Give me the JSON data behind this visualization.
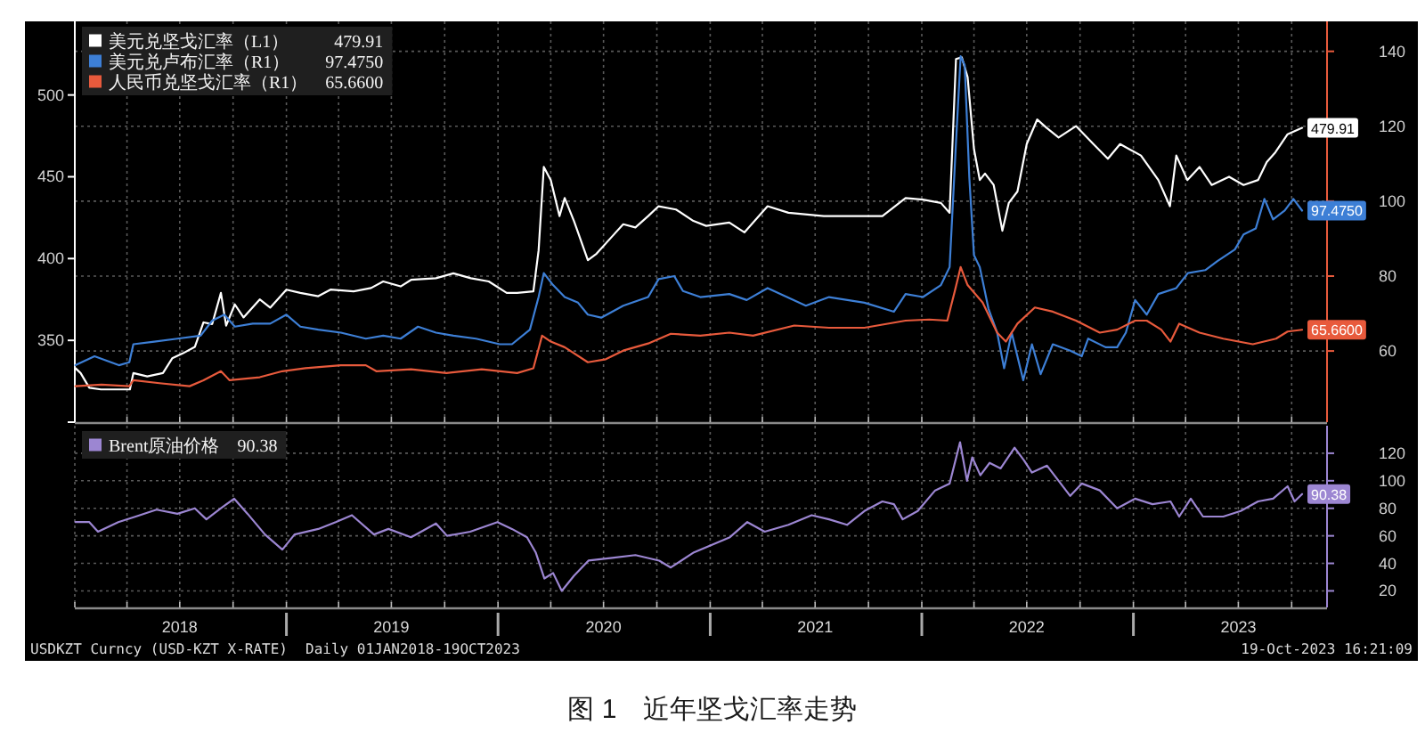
{
  "chart_data": [
    {
      "type": "line",
      "xlim": [
        "2018-01-01",
        "2023-12-01"
      ],
      "xticks": [
        {
          "value": "2018-01-01",
          "label": null
        },
        {
          "value": "2018-04-01",
          "label": null
        },
        {
          "value": "2018-07-01",
          "label": null
        },
        {
          "value": "2018-10-01",
          "label": null
        },
        {
          "value": "2019-01-01",
          "label": null
        },
        {
          "value": "2019-04-01",
          "label": null
        },
        {
          "value": "2019-07-01",
          "label": null
        },
        {
          "value": "2019-10-01",
          "label": null
        },
        {
          "value": "2020-01-01",
          "label": null
        },
        {
          "value": "2020-04-01",
          "label": null
        },
        {
          "value": "2020-07-01",
          "label": null
        },
        {
          "value": "2020-10-01",
          "label": null
        },
        {
          "value": "2021-01-01",
          "label": null
        },
        {
          "value": "2021-04-01",
          "label": null
        },
        {
          "value": "2021-07-01",
          "label": null
        },
        {
          "value": "2021-10-01",
          "label": null
        },
        {
          "value": "2022-01-01",
          "label": null
        },
        {
          "value": "2022-04-01",
          "label": null
        },
        {
          "value": "2022-07-01",
          "label": null
        },
        {
          "value": "2022-10-01",
          "label": null
        },
        {
          "value": "2023-01-01",
          "label": null
        },
        {
          "value": "2023-04-01",
          "label": null
        },
        {
          "value": "2023-07-01",
          "label": null
        },
        {
          "value": "2023-10-01",
          "label": null
        }
      ],
      "ylim": [
        300,
        545
      ],
      "yticks": [
        {
          "value": 300,
          "label": null
        },
        350,
        400,
        450,
        500
      ],
      "y2lim": [
        41,
        148
      ],
      "y2ticks": [
        60,
        80,
        100,
        120,
        140
      ],
      "grid": true,
      "legend": "top left",
      "tick_labels": "y",
      "series": [
        {
          "name": "美元兑坚戈汇率（L1）",
          "color": "#ffffff",
          "x": [
            "2018-01-02",
            "2018-01-11",
            "2018-01-26",
            "2018-02-15",
            "2018-04-06",
            "2018-04-12",
            "2018-05-06",
            "2018-06-02",
            "2018-06-18",
            "2018-07-06",
            "2018-07-27",
            "2018-08-11",
            "2018-08-26",
            "2018-09-10",
            "2018-09-19",
            "2018-10-04",
            "2018-10-19",
            "2018-11-16",
            "2018-12-04",
            "2019-01-01",
            "2019-01-25",
            "2019-02-25",
            "2019-03-18",
            "2019-04-27",
            "2019-05-27",
            "2019-06-17",
            "2019-07-17",
            "2019-08-04",
            "2019-09-16",
            "2019-10-16",
            "2019-11-15",
            "2019-12-16",
            "2020-01-16",
            "2020-02-03",
            "2020-03-02",
            "2020-03-11",
            "2020-03-20",
            "2020-04-01",
            "2020-04-16",
            "2020-04-25",
            "2020-05-11",
            "2020-06-04",
            "2020-06-19",
            "2020-07-17",
            "2020-08-04",
            "2020-08-25",
            "2020-09-16",
            "2020-10-04",
            "2020-11-03",
            "2020-12-03",
            "2020-12-25",
            "2021-02-03",
            "2021-03-01",
            "2021-04-10",
            "2021-05-16",
            "2021-07-16",
            "2021-08-25",
            "2021-10-25",
            "2021-12-04",
            "2022-01-03",
            "2022-02-03",
            "2022-02-18",
            "2022-03-01",
            "2022-03-11",
            "2022-03-21",
            "2022-04-01",
            "2022-04-11",
            "2022-04-20",
            "2022-05-05",
            "2022-05-20",
            "2022-05-31",
            "2022-06-15",
            "2022-07-01",
            "2022-07-19",
            "2022-08-04",
            "2022-08-25",
            "2022-09-24",
            "2022-10-24",
            "2022-11-18",
            "2022-12-09",
            "2023-01-14",
            "2023-02-13",
            "2023-03-05",
            "2023-03-16",
            "2023-04-04",
            "2023-04-25",
            "2023-05-16",
            "2023-06-15",
            "2023-07-10",
            "2023-08-04",
            "2023-08-19",
            "2023-09-03",
            "2023-09-24",
            "2023-10-19"
          ],
          "values": [
            333,
            330,
            321,
            320,
            320,
            330,
            328,
            330,
            339,
            342,
            346,
            361,
            360,
            379,
            359,
            372,
            364,
            375,
            370,
            381,
            379,
            377,
            381,
            380,
            382,
            386,
            383,
            387,
            388,
            391,
            388,
            386,
            379,
            379,
            380,
            405,
            456,
            448,
            426,
            437,
            423,
            399,
            403,
            414,
            421,
            419,
            426,
            432,
            430,
            423,
            420,
            422,
            416,
            432,
            428,
            426,
            426,
            426,
            437,
            436,
            434,
            428,
            522,
            523,
            511,
            467,
            448,
            452,
            445,
            417,
            434,
            441,
            470,
            485,
            480,
            474,
            481,
            470,
            461,
            470,
            463,
            448,
            432,
            463,
            448,
            456,
            445,
            450,
            445,
            448,
            459,
            465,
            476,
            479.91
          ],
          "value_labels": [
            null,
            null,
            null,
            null,
            null,
            null,
            null,
            null,
            null,
            null,
            null,
            null,
            null,
            null,
            null,
            null,
            null,
            null,
            null,
            null,
            null,
            null,
            null,
            null,
            null,
            null,
            null,
            null,
            null,
            null,
            null,
            null,
            null,
            null,
            null,
            null,
            null,
            null,
            null,
            null,
            null,
            null,
            null,
            null,
            null,
            null,
            null,
            null,
            null,
            null,
            null,
            null,
            null,
            null,
            null,
            null,
            null,
            null,
            null,
            null,
            null,
            null,
            null,
            null,
            null,
            null,
            null,
            null,
            null,
            null,
            null,
            null,
            null,
            null,
            null,
            null,
            null,
            null,
            null,
            null,
            null,
            null,
            null,
            null,
            null,
            null,
            null,
            null,
            null,
            null,
            null,
            null,
            null,
            "479.91"
          ]
        },
        {
          "name": "美元兑卢布汇率（R1）",
          "color": "#3d7fd6",
          "axis": "y2",
          "x": [
            "2018-01-02",
            "2018-02-04",
            "2018-03-18",
            "2018-04-05",
            "2018-04-12",
            "2018-05-18",
            "2018-06-27",
            "2018-08-06",
            "2018-08-26",
            "2018-09-16",
            "2018-10-04",
            "2018-11-04",
            "2018-12-04",
            "2019-01-01",
            "2019-01-25",
            "2019-02-25",
            "2019-04-05",
            "2019-05-18",
            "2019-06-17",
            "2019-07-17",
            "2019-08-16",
            "2019-09-16",
            "2019-10-16",
            "2019-11-24",
            "2020-01-04",
            "2020-01-25",
            "2020-02-25",
            "2020-03-11",
            "2020-03-20",
            "2020-04-05",
            "2020-04-25",
            "2020-05-18",
            "2020-06-04",
            "2020-06-27",
            "2020-08-04",
            "2020-09-16",
            "2020-10-04",
            "2020-10-31",
            "2020-11-15",
            "2020-12-15",
            "2021-02-03",
            "2021-03-05",
            "2021-04-10",
            "2021-06-15",
            "2021-07-25",
            "2021-09-24",
            "2021-11-14",
            "2021-12-04",
            "2022-01-03",
            "2022-02-03",
            "2022-02-18",
            "2022-03-01",
            "2022-03-09",
            "2022-03-16",
            "2022-03-24",
            "2022-04-01",
            "2022-04-11",
            "2022-04-26",
            "2022-05-11",
            "2022-05-23",
            "2022-06-05",
            "2022-06-25",
            "2022-07-10",
            "2022-07-25",
            "2022-08-15",
            "2022-09-14",
            "2022-10-04",
            "2022-10-15",
            "2022-11-14",
            "2022-12-04",
            "2022-12-19",
            "2023-01-04",
            "2023-01-24",
            "2023-02-13",
            "2023-03-16",
            "2023-04-05",
            "2023-05-05",
            "2023-05-26",
            "2023-06-25",
            "2023-07-10",
            "2023-07-31",
            "2023-08-15",
            "2023-08-30",
            "2023-09-19",
            "2023-10-04",
            "2023-10-19"
          ],
          "values": [
            56.2,
            58.6,
            56.2,
            57.0,
            61.8,
            62.5,
            63.3,
            64.1,
            68.1,
            69.7,
            66.5,
            67.3,
            67.3,
            69.7,
            66.5,
            65.7,
            64.9,
            63.3,
            64.1,
            63.3,
            66.5,
            64.9,
            64.1,
            63.3,
            61.8,
            61.8,
            65.7,
            74.4,
            80.8,
            77.6,
            74.4,
            72.9,
            69.7,
            68.9,
            72.1,
            74.4,
            79.2,
            80.0,
            76.0,
            74.4,
            75.2,
            73.6,
            76.8,
            72.1,
            74.4,
            72.9,
            70.5,
            75.2,
            74.4,
            77.6,
            82.4,
            115.7,
            138.7,
            136.3,
            106.2,
            85.6,
            82.4,
            71.3,
            64.9,
            55.4,
            64.9,
            52.2,
            61.8,
            53.8,
            61.8,
            60.1,
            58.6,
            63.3,
            61.0,
            61.0,
            64.9,
            73.6,
            69.7,
            75.2,
            76.8,
            80.8,
            81.6,
            84.0,
            87.1,
            91.1,
            92.7,
            100.6,
            95.1,
            97.5,
            100.6,
            97.475
          ],
          "value_labels": [
            null,
            null,
            null,
            null,
            null,
            null,
            null,
            null,
            null,
            null,
            null,
            null,
            null,
            null,
            null,
            null,
            null,
            null,
            null,
            null,
            null,
            null,
            null,
            null,
            null,
            null,
            null,
            null,
            null,
            null,
            null,
            null,
            null,
            null,
            null,
            null,
            null,
            null,
            null,
            null,
            null,
            null,
            null,
            null,
            null,
            null,
            null,
            null,
            null,
            null,
            null,
            null,
            null,
            null,
            null,
            null,
            null,
            null,
            null,
            null,
            null,
            null,
            null,
            null,
            null,
            null,
            null,
            null,
            null,
            null,
            null,
            null,
            null,
            null,
            null,
            null,
            null,
            null,
            null,
            null,
            null,
            null,
            null,
            null,
            null,
            "97.4750"
          ]
        },
        {
          "name": "人民币兑坚戈汇率（R1）",
          "color": "#e85a3c",
          "axis": "y2",
          "x": [
            "2018-01-02",
            "2018-02-16",
            "2018-04-05",
            "2018-04-12",
            "2018-05-27",
            "2018-07-18",
            "2018-08-11",
            "2018-09-10",
            "2018-09-25",
            "2018-11-16",
            "2018-12-25",
            "2019-02-03",
            "2019-04-05",
            "2019-05-18",
            "2019-06-05",
            "2019-08-04",
            "2019-10-04",
            "2019-12-04",
            "2020-02-03",
            "2020-03-02",
            "2020-03-17",
            "2020-04-01",
            "2020-04-25",
            "2020-06-04",
            "2020-07-05",
            "2020-08-04",
            "2020-09-16",
            "2020-10-25",
            "2020-12-15",
            "2021-02-03",
            "2021-03-16",
            "2021-05-26",
            "2021-07-25",
            "2021-09-24",
            "2021-12-04",
            "2022-01-14",
            "2022-02-14",
            "2022-02-27",
            "2022-03-09",
            "2022-03-21",
            "2022-04-16",
            "2022-05-11",
            "2022-05-26",
            "2022-06-15",
            "2022-07-15",
            "2022-08-15",
            "2022-09-24",
            "2022-11-04",
            "2022-12-04",
            "2023-01-04",
            "2023-01-24",
            "2023-02-18",
            "2023-03-06",
            "2023-03-21",
            "2023-04-25",
            "2023-06-05",
            "2023-07-26",
            "2023-09-04",
            "2023-09-24",
            "2023-10-19"
          ],
          "values": [
            50.6,
            51.0,
            50.6,
            52.2,
            51.4,
            50.6,
            52.2,
            54.6,
            52.2,
            53.0,
            54.6,
            55.4,
            56.2,
            56.2,
            54.6,
            55.1,
            54.1,
            55.1,
            54.1,
            55.4,
            64.1,
            62.5,
            61.0,
            57.0,
            57.8,
            60.1,
            62.0,
            64.6,
            64.1,
            64.9,
            64.1,
            66.8,
            66.2,
            66.2,
            68.1,
            68.4,
            68.1,
            76.0,
            82.4,
            77.6,
            72.9,
            64.9,
            62.5,
            67.3,
            71.6,
            70.5,
            68.1,
            64.9,
            65.7,
            68.1,
            68.1,
            65.7,
            62.5,
            67.3,
            64.9,
            63.3,
            61.8,
            63.3,
            65.2,
            65.66
          ],
          "value_labels": [
            null,
            null,
            null,
            null,
            null,
            null,
            null,
            null,
            null,
            null,
            null,
            null,
            null,
            null,
            null,
            null,
            null,
            null,
            null,
            null,
            null,
            null,
            null,
            null,
            null,
            null,
            null,
            null,
            null,
            null,
            null,
            null,
            null,
            null,
            null,
            null,
            null,
            null,
            null,
            null,
            null,
            null,
            null,
            null,
            null,
            null,
            null,
            null,
            null,
            null,
            null,
            null,
            null,
            null,
            null,
            null,
            null,
            null,
            null,
            "65.6600"
          ]
        }
      ]
    },
    {
      "type": "line",
      "xlim": [
        "2018-01-01",
        "2023-12-01"
      ],
      "xticks": [
        {
          "value": "2018-01-01",
          "label": null
        },
        {
          "value": "2018-04-01",
          "label": null
        },
        {
          "value": "2018-07-01",
          "label": "2018"
        },
        {
          "value": "2018-10-01",
          "label": null
        },
        {
          "value": "2019-01-01",
          "label": null
        },
        {
          "value": "2019-04-01",
          "label": null
        },
        {
          "value": "2019-07-01",
          "label": "2019"
        },
        {
          "value": "2019-10-01",
          "label": null
        },
        {
          "value": "2020-01-01",
          "label": null
        },
        {
          "value": "2020-04-01",
          "label": null
        },
        {
          "value": "2020-07-01",
          "label": "2020"
        },
        {
          "value": "2020-10-01",
          "label": null
        },
        {
          "value": "2021-01-01",
          "label": null
        },
        {
          "value": "2021-04-01",
          "label": null
        },
        {
          "value": "2021-07-01",
          "label": "2021"
        },
        {
          "value": "2021-10-01",
          "label": null
        },
        {
          "value": "2022-01-01",
          "label": null
        },
        {
          "value": "2022-04-01",
          "label": null
        },
        {
          "value": "2022-07-01",
          "label": "2022"
        },
        {
          "value": "2022-10-01",
          "label": null
        },
        {
          "value": "2023-01-01",
          "label": null
        },
        {
          "value": "2023-04-01",
          "label": null
        },
        {
          "value": "2023-07-01",
          "label": "2023"
        },
        {
          "value": "2023-10-01",
          "label": null
        }
      ],
      "y2lim": [
        8,
        140
      ],
      "y2ticks": [
        20,
        40,
        60,
        80,
        100,
        120
      ],
      "grid": true,
      "legend": "top left",
      "series": [
        {
          "name": "Brent原油价格",
          "color": "#9c86d2",
          "axis": "y2",
          "x": [
            "2018-01-02",
            "2018-01-26",
            "2018-02-10",
            "2018-03-17",
            "2018-04-16",
            "2018-05-22",
            "2018-06-27",
            "2018-07-27",
            "2018-08-16",
            "2018-09-10",
            "2018-10-03",
            "2018-10-26",
            "2018-11-25",
            "2018-12-25",
            "2019-01-15",
            "2019-02-25",
            "2019-03-27",
            "2019-04-24",
            "2019-06-01",
            "2019-06-26",
            "2019-08-04",
            "2019-09-16",
            "2019-10-05",
            "2019-11-14",
            "2019-12-31",
            "2020-01-25",
            "2020-02-20",
            "2020-03-06",
            "2020-03-21",
            "2020-04-05",
            "2020-04-20",
            "2020-05-11",
            "2020-06-05",
            "2020-07-16",
            "2020-08-25",
            "2020-10-05",
            "2020-10-25",
            "2020-12-04",
            "2021-02-04",
            "2021-03-06",
            "2021-04-05",
            "2021-05-16",
            "2021-06-25",
            "2021-07-25",
            "2021-08-25",
            "2021-09-24",
            "2021-10-25",
            "2021-11-14",
            "2021-11-29",
            "2021-12-25",
            "2022-01-24",
            "2022-02-18",
            "2022-03-08",
            "2022-03-20",
            "2022-03-29",
            "2022-04-12",
            "2022-04-28",
            "2022-05-17",
            "2022-06-10",
            "2022-06-26",
            "2022-07-10",
            "2022-08-05",
            "2022-08-25",
            "2022-09-14",
            "2022-10-04",
            "2022-11-04",
            "2022-12-04",
            "2023-01-04",
            "2023-02-03",
            "2023-03-06",
            "2023-03-21",
            "2023-04-10",
            "2023-05-01",
            "2023-06-05",
            "2023-07-05",
            "2023-08-04",
            "2023-08-30",
            "2023-09-24",
            "2023-10-06",
            "2023-10-19"
          ],
          "values": [
            70,
            70,
            63,
            70,
            74,
            79,
            76,
            80,
            72,
            80,
            87,
            76,
            61,
            50,
            61,
            65,
            70,
            75,
            61,
            65,
            59,
            69,
            60,
            63,
            70,
            65,
            59,
            48,
            29,
            33,
            20,
            31,
            42,
            44,
            46,
            42,
            37,
            48,
            59,
            70,
            63,
            68,
            75,
            72,
            68,
            78,
            85,
            83,
            72,
            78,
            93,
            98,
            128,
            100,
            117,
            104,
            113,
            109,
            124,
            115,
            106,
            111,
            100,
            89,
            98,
            93,
            80,
            87,
            83,
            85,
            74,
            87,
            74,
            74,
            78,
            85,
            87,
            96,
            85,
            90.38
          ],
          "value_labels": [
            null,
            null,
            null,
            null,
            null,
            null,
            null,
            null,
            null,
            null,
            null,
            null,
            null,
            null,
            null,
            null,
            null,
            null,
            null,
            null,
            null,
            null,
            null,
            null,
            null,
            null,
            null,
            null,
            null,
            null,
            null,
            null,
            null,
            null,
            null,
            null,
            null,
            null,
            null,
            null,
            null,
            null,
            null,
            null,
            null,
            null,
            null,
            null,
            null,
            null,
            null,
            null,
            null,
            null,
            null,
            null,
            null,
            null,
            null,
            null,
            null,
            null,
            null,
            null,
            null,
            null,
            null,
            null,
            null,
            null,
            null,
            null,
            null,
            null,
            null,
            null,
            null,
            null,
            null,
            "90.38"
          ]
        }
      ],
      "annotations": [
        "USDKZT Curncy (USD-KZT X-RATE)",
        "Daily 01JAN2018-19OCT2023",
        "19-Oct-2023 16:21:09",
        "图 1　近年坚戈汇率走势"
      ]
    }
  ]
}
